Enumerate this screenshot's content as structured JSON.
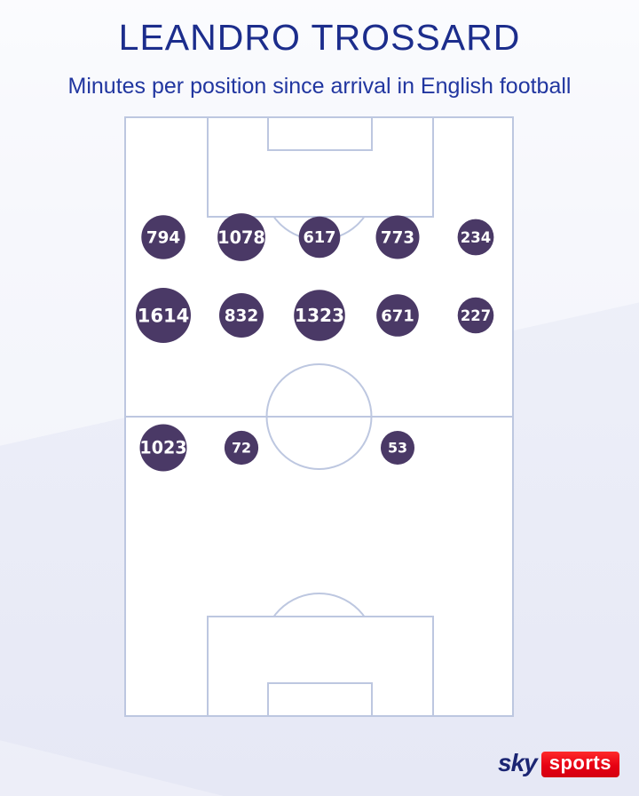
{
  "header": {
    "title": "LEANDRO TROSSARD",
    "subtitle": "Minutes per position since arrival in English football"
  },
  "footer": {
    "logo_sky": "sky",
    "logo_sports": "sports"
  },
  "colors": {
    "title_blue": "#1c2d8c",
    "subtitle_blue": "#2136a0",
    "bubble_purple": "#4a3966",
    "pitch_line": "#bdc7e0",
    "pitch_fill": "#ffffff",
    "background_lavender": "#e6e8f5",
    "logo_navy": "#1b2573",
    "logo_red": "#e60013"
  },
  "chart_data": {
    "type": "bubble",
    "subtype": "football-pitch-position-map",
    "title": "LEANDRO TROSSARD",
    "subtitle": "Minutes per position since arrival in English football",
    "unit": "minutes",
    "orientation": "attacking-goal-at-top",
    "grid": {
      "columns": 5,
      "rows": 3
    },
    "value_range": [
      53,
      1614
    ],
    "positions": [
      {
        "row": 1,
        "col": 1,
        "minutes": 794
      },
      {
        "row": 1,
        "col": 2,
        "minutes": 1078
      },
      {
        "row": 1,
        "col": 3,
        "minutes": 617
      },
      {
        "row": 1,
        "col": 4,
        "minutes": 773
      },
      {
        "row": 1,
        "col": 5,
        "minutes": 234
      },
      {
        "row": 2,
        "col": 1,
        "minutes": 1614
      },
      {
        "row": 2,
        "col": 2,
        "minutes": 832
      },
      {
        "row": 2,
        "col": 3,
        "minutes": 1323
      },
      {
        "row": 2,
        "col": 4,
        "minutes": 671
      },
      {
        "row": 2,
        "col": 5,
        "minutes": 227
      },
      {
        "row": 3,
        "col": 1,
        "minutes": 1023
      },
      {
        "row": 3,
        "col": 2,
        "minutes": 72
      },
      {
        "row": 3,
        "col": 4,
        "minutes": 53
      }
    ]
  }
}
